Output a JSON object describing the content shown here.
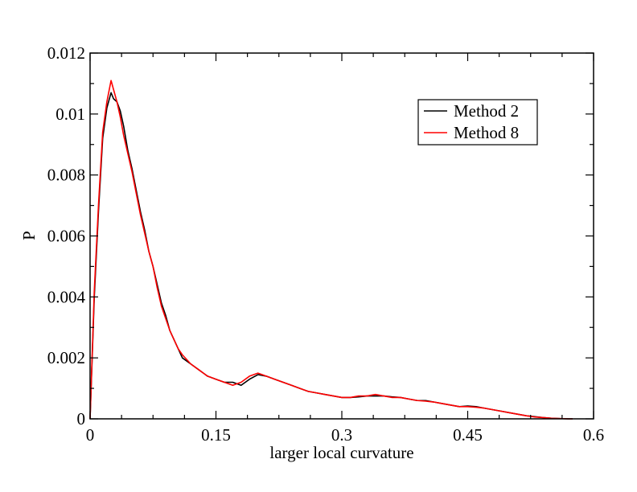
{
  "chart_data": {
    "type": "line",
    "title": "",
    "xlabel": "larger local curvature",
    "ylabel": "P",
    "xlim": [
      0,
      0.6
    ],
    "ylim": [
      0,
      0.012
    ],
    "xticks": [
      {
        "value": 0,
        "label": "0"
      },
      {
        "value": 0.15,
        "label": "0.15"
      },
      {
        "value": 0.3,
        "label": "0.3"
      },
      {
        "value": 0.45,
        "label": "0.45"
      },
      {
        "value": 0.6,
        "label": "0.6"
      }
    ],
    "yticks": [
      {
        "value": 0,
        "label": "0"
      },
      {
        "value": 0.002,
        "label": "0.002"
      },
      {
        "value": 0.004,
        "label": "0.004"
      },
      {
        "value": 0.006,
        "label": "0.006"
      },
      {
        "value": 0.008,
        "label": "0.008"
      },
      {
        "value": 0.01,
        "label": "0.01"
      },
      {
        "value": 0.012,
        "label": "0.012"
      }
    ],
    "grid": false,
    "legend_position": "top-right",
    "series": [
      {
        "name": "Method 2",
        "color": "#000000",
        "x": [
          0.0,
          0.005,
          0.01,
          0.015,
          0.02,
          0.025,
          0.028,
          0.032,
          0.036,
          0.04,
          0.045,
          0.05,
          0.055,
          0.06,
          0.065,
          0.07,
          0.075,
          0.08,
          0.085,
          0.09,
          0.095,
          0.1,
          0.105,
          0.11,
          0.12,
          0.13,
          0.14,
          0.15,
          0.16,
          0.17,
          0.18,
          0.19,
          0.2,
          0.21,
          0.22,
          0.23,
          0.24,
          0.25,
          0.26,
          0.27,
          0.28,
          0.29,
          0.3,
          0.31,
          0.32,
          0.33,
          0.34,
          0.35,
          0.36,
          0.37,
          0.38,
          0.39,
          0.4,
          0.41,
          0.42,
          0.43,
          0.44,
          0.45,
          0.46,
          0.47,
          0.48,
          0.49,
          0.5,
          0.51,
          0.52,
          0.53,
          0.54,
          0.55,
          0.56,
          0.57,
          0.575
        ],
        "y": [
          0.0,
          0.004,
          0.0068,
          0.0092,
          0.0102,
          0.0107,
          0.0105,
          0.0104,
          0.0101,
          0.0096,
          0.0088,
          0.0082,
          0.0075,
          0.0068,
          0.0062,
          0.0055,
          0.005,
          0.0044,
          0.0038,
          0.0034,
          0.0029,
          0.0026,
          0.0023,
          0.002,
          0.0018,
          0.0016,
          0.0014,
          0.0013,
          0.0012,
          0.0012,
          0.0011,
          0.0013,
          0.00145,
          0.0014,
          0.0013,
          0.0012,
          0.0011,
          0.001,
          0.0009,
          0.00085,
          0.0008,
          0.00075,
          0.0007,
          0.0007,
          0.00072,
          0.00075,
          0.00075,
          0.00075,
          0.00072,
          0.0007,
          0.00065,
          0.0006,
          0.0006,
          0.00055,
          0.0005,
          0.00045,
          0.0004,
          0.00042,
          0.0004,
          0.00035,
          0.0003,
          0.00025,
          0.0002,
          0.00015,
          0.0001,
          7e-05,
          4e-05,
          2e-05,
          1e-05,
          0.0,
          0.0
        ]
      },
      {
        "name": "Method 8",
        "color": "#ff0000",
        "x": [
          0.0,
          0.005,
          0.01,
          0.015,
          0.02,
          0.025,
          0.028,
          0.032,
          0.036,
          0.04,
          0.045,
          0.05,
          0.055,
          0.06,
          0.065,
          0.07,
          0.075,
          0.08,
          0.085,
          0.09,
          0.095,
          0.1,
          0.105,
          0.11,
          0.12,
          0.13,
          0.14,
          0.15,
          0.16,
          0.17,
          0.18,
          0.19,
          0.2,
          0.21,
          0.22,
          0.23,
          0.24,
          0.25,
          0.26,
          0.27,
          0.28,
          0.29,
          0.3,
          0.31,
          0.32,
          0.33,
          0.34,
          0.35,
          0.36,
          0.37,
          0.38,
          0.39,
          0.4,
          0.41,
          0.42,
          0.43,
          0.44,
          0.45,
          0.46,
          0.47,
          0.48,
          0.49,
          0.5,
          0.51,
          0.52,
          0.53,
          0.54,
          0.55,
          0.56,
          0.57,
          0.575
        ],
        "y": [
          0.0,
          0.0042,
          0.007,
          0.0094,
          0.0104,
          0.0111,
          0.0108,
          0.0104,
          0.0099,
          0.0093,
          0.0087,
          0.0081,
          0.0074,
          0.0067,
          0.0061,
          0.0055,
          0.005,
          0.0043,
          0.0037,
          0.0033,
          0.0029,
          0.0026,
          0.0023,
          0.0021,
          0.0018,
          0.0016,
          0.0014,
          0.0013,
          0.0012,
          0.0011,
          0.0012,
          0.0014,
          0.0015,
          0.0014,
          0.0013,
          0.0012,
          0.0011,
          0.001,
          0.0009,
          0.00085,
          0.0008,
          0.00075,
          0.0007,
          0.0007,
          0.00075,
          0.00075,
          0.0008,
          0.00075,
          0.0007,
          0.0007,
          0.00065,
          0.0006,
          0.00058,
          0.00055,
          0.0005,
          0.00045,
          0.0004,
          0.0004,
          0.00038,
          0.00035,
          0.0003,
          0.00025,
          0.0002,
          0.00015,
          0.0001,
          6e-05,
          4e-05,
          2e-05,
          1e-05,
          0.0,
          0.0
        ]
      }
    ]
  }
}
